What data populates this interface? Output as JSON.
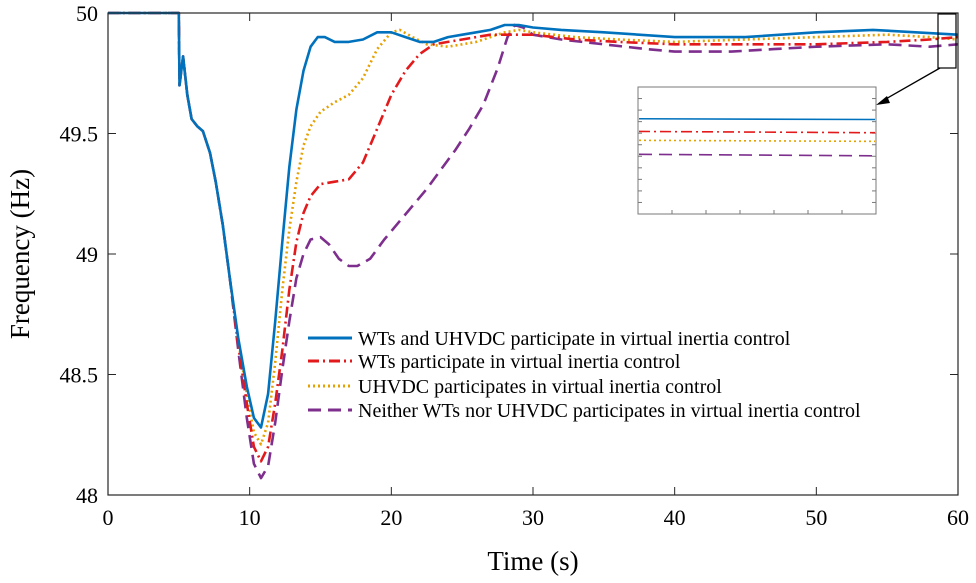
{
  "chart_data": {
    "type": "line",
    "title": "",
    "xlabel": "Time (s)",
    "ylabel": "Frequency (Hz)",
    "xlim": [
      0,
      60
    ],
    "ylim": [
      48,
      50
    ],
    "xticks": [
      0,
      10,
      20,
      30,
      40,
      50,
      60
    ],
    "yticks": [
      48,
      48.5,
      49,
      49.5,
      50
    ],
    "xtick_labels": [
      "0",
      "10",
      "20",
      "30",
      "40",
      "50",
      "60"
    ],
    "ytick_labels": [
      "48",
      "48.5",
      "49",
      "49.5",
      "50"
    ],
    "legend_position": "bottom-center",
    "series": [
      {
        "name": "WTs and UHVDC participate in virtual inertia control",
        "color": "#0072BD",
        "style": "solid",
        "points": [
          [
            0,
            50
          ],
          [
            5,
            50
          ],
          [
            5.05,
            49.7
          ],
          [
            5.3,
            49.82
          ],
          [
            5.6,
            49.66
          ],
          [
            5.9,
            49.56
          ],
          [
            6.3,
            49.53
          ],
          [
            6.7,
            49.51
          ],
          [
            7.2,
            49.42
          ],
          [
            7.6,
            49.3
          ],
          [
            8.1,
            49.12
          ],
          [
            8.6,
            48.9
          ],
          [
            9.2,
            48.65
          ],
          [
            9.8,
            48.45
          ],
          [
            10.3,
            48.32
          ],
          [
            10.8,
            48.28
          ],
          [
            11.3,
            48.42
          ],
          [
            11.8,
            48.72
          ],
          [
            12.3,
            49.05
          ],
          [
            12.8,
            49.36
          ],
          [
            13.3,
            49.6
          ],
          [
            13.8,
            49.76
          ],
          [
            14.3,
            49.86
          ],
          [
            14.8,
            49.9
          ],
          [
            15.3,
            49.9
          ],
          [
            16,
            49.88
          ],
          [
            17,
            49.88
          ],
          [
            18,
            49.89
          ],
          [
            19,
            49.92
          ],
          [
            20,
            49.92
          ],
          [
            21,
            49.9
          ],
          [
            22,
            49.88
          ],
          [
            23,
            49.88
          ],
          [
            24,
            49.9
          ],
          [
            25,
            49.91
          ],
          [
            26,
            49.92
          ],
          [
            27,
            49.93
          ],
          [
            28,
            49.95
          ],
          [
            29,
            49.95
          ],
          [
            30,
            49.94
          ],
          [
            32,
            49.93
          ],
          [
            35,
            49.92
          ],
          [
            40,
            49.9
          ],
          [
            45,
            49.9
          ],
          [
            50,
            49.92
          ],
          [
            54,
            49.93
          ],
          [
            57,
            49.92
          ],
          [
            60,
            49.91
          ]
        ]
      },
      {
        "name": "WTs participate in virtual inertia control",
        "color": "#E31A1C",
        "style": "dashdot",
        "points": [
          [
            0,
            50
          ],
          [
            5,
            50
          ],
          [
            5.05,
            49.7
          ],
          [
            5.3,
            49.82
          ],
          [
            5.6,
            49.66
          ],
          [
            5.9,
            49.56
          ],
          [
            6.3,
            49.53
          ],
          [
            6.7,
            49.51
          ],
          [
            7.2,
            49.42
          ],
          [
            7.6,
            49.3
          ],
          [
            8.1,
            49.12
          ],
          [
            8.6,
            48.9
          ],
          [
            9.2,
            48.62
          ],
          [
            9.8,
            48.38
          ],
          [
            10.3,
            48.2
          ],
          [
            10.8,
            48.14
          ],
          [
            11.3,
            48.2
          ],
          [
            11.8,
            48.38
          ],
          [
            12.3,
            48.6
          ],
          [
            12.8,
            48.85
          ],
          [
            13.3,
            49.05
          ],
          [
            13.8,
            49.17
          ],
          [
            14.3,
            49.24
          ],
          [
            15,
            49.29
          ],
          [
            16,
            49.3
          ],
          [
            17,
            49.31
          ],
          [
            18,
            49.38
          ],
          [
            19,
            49.52
          ],
          [
            20,
            49.66
          ],
          [
            21,
            49.76
          ],
          [
            22,
            49.83
          ],
          [
            23,
            49.87
          ],
          [
            24,
            49.88
          ],
          [
            25,
            49.89
          ],
          [
            26,
            49.9
          ],
          [
            27,
            49.91
          ],
          [
            28,
            49.91
          ],
          [
            29,
            49.91
          ],
          [
            30,
            49.91
          ],
          [
            33,
            49.89
          ],
          [
            36,
            49.88
          ],
          [
            40,
            49.87
          ],
          [
            45,
            49.87
          ],
          [
            50,
            49.87
          ],
          [
            55,
            49.88
          ],
          [
            58,
            49.89
          ],
          [
            60,
            49.9
          ]
        ]
      },
      {
        "name": "UHVDC participates in virtual inertia control",
        "color": "#E6A100",
        "style": "dotted",
        "points": [
          [
            0,
            50
          ],
          [
            5,
            50
          ],
          [
            5.05,
            49.7
          ],
          [
            5.3,
            49.82
          ],
          [
            5.6,
            49.66
          ],
          [
            5.9,
            49.56
          ],
          [
            6.3,
            49.53
          ],
          [
            6.7,
            49.51
          ],
          [
            7.2,
            49.42
          ],
          [
            7.6,
            49.3
          ],
          [
            8.1,
            49.12
          ],
          [
            8.6,
            48.9
          ],
          [
            9.2,
            48.64
          ],
          [
            9.8,
            48.42
          ],
          [
            10.3,
            48.26
          ],
          [
            10.8,
            48.21
          ],
          [
            11.3,
            48.3
          ],
          [
            11.8,
            48.55
          ],
          [
            12.3,
            48.85
          ],
          [
            12.8,
            49.1
          ],
          [
            13.3,
            49.3
          ],
          [
            13.8,
            49.45
          ],
          [
            14.3,
            49.53
          ],
          [
            15,
            49.59
          ],
          [
            16,
            49.63
          ],
          [
            17,
            49.66
          ],
          [
            18,
            49.73
          ],
          [
            19,
            49.85
          ],
          [
            20,
            49.92
          ],
          [
            20.6,
            49.93
          ],
          [
            21.5,
            49.9
          ],
          [
            22.5,
            49.87
          ],
          [
            24,
            49.86
          ],
          [
            25,
            49.87
          ],
          [
            26,
            49.88
          ],
          [
            27,
            49.9
          ],
          [
            28,
            49.92
          ],
          [
            29,
            49.93
          ],
          [
            30,
            49.92
          ],
          [
            33,
            49.9
          ],
          [
            36,
            49.89
          ],
          [
            40,
            49.88
          ],
          [
            45,
            49.89
          ],
          [
            50,
            49.9
          ],
          [
            55,
            49.91
          ],
          [
            58,
            49.9
          ],
          [
            60,
            49.89
          ]
        ]
      },
      {
        "name": "Neither WTs nor UHVDC participates in virtual inertia control",
        "color": "#7E2F8E",
        "style": "dashed",
        "points": [
          [
            0,
            50
          ],
          [
            5,
            50
          ],
          [
            5.05,
            49.7
          ],
          [
            5.3,
            49.82
          ],
          [
            5.6,
            49.66
          ],
          [
            5.9,
            49.56
          ],
          [
            6.3,
            49.53
          ],
          [
            6.7,
            49.51
          ],
          [
            7.2,
            49.42
          ],
          [
            7.6,
            49.3
          ],
          [
            8.1,
            49.12
          ],
          [
            8.6,
            48.9
          ],
          [
            9.2,
            48.6
          ],
          [
            9.8,
            48.32
          ],
          [
            10.3,
            48.13
          ],
          [
            10.8,
            48.07
          ],
          [
            11.3,
            48.12
          ],
          [
            11.8,
            48.3
          ],
          [
            12.3,
            48.52
          ],
          [
            12.8,
            48.72
          ],
          [
            13.3,
            48.9
          ],
          [
            13.8,
            49.0
          ],
          [
            14.3,
            49.06
          ],
          [
            15,
            49.07
          ],
          [
            15.6,
            49.04
          ],
          [
            16.3,
            48.98
          ],
          [
            17,
            48.95
          ],
          [
            17.6,
            48.95
          ],
          [
            18.5,
            48.98
          ],
          [
            19.5,
            49.06
          ],
          [
            20.5,
            49.13
          ],
          [
            21.5,
            49.2
          ],
          [
            22.5,
            49.27
          ],
          [
            23.5,
            49.35
          ],
          [
            24.5,
            49.43
          ],
          [
            25.5,
            49.52
          ],
          [
            26.5,
            49.62
          ],
          [
            27.5,
            49.77
          ],
          [
            28.2,
            49.9
          ],
          [
            28.7,
            49.95
          ],
          [
            29.3,
            49.94
          ],
          [
            30,
            49.91
          ],
          [
            32,
            49.89
          ],
          [
            35,
            49.87
          ],
          [
            38,
            49.85
          ],
          [
            40,
            49.84
          ],
          [
            44,
            49.84
          ],
          [
            47,
            49.85
          ],
          [
            50,
            49.86
          ],
          [
            55,
            49.87
          ],
          [
            58,
            49.86
          ],
          [
            60,
            49.87
          ]
        ]
      }
    ],
    "inset": {
      "source_x_range": [
        59.3,
        60
      ],
      "series_levels": [
        0.25,
        0.35,
        0.42,
        0.53
      ]
    }
  }
}
